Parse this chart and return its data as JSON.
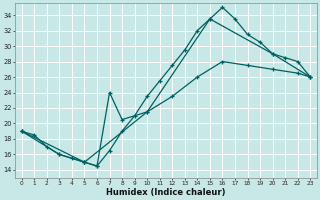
{
  "xlabel": "Humidex (Indice chaleur)",
  "bg_color": "#c8e8e8",
  "grid_color": "#b0d0d0",
  "line_color": "#006060",
  "xlim": [
    -0.5,
    23.5
  ],
  "ylim": [
    13.0,
    35.5
  ],
  "xticks": [
    0,
    1,
    2,
    3,
    4,
    5,
    6,
    7,
    8,
    9,
    10,
    11,
    12,
    13,
    14,
    15,
    16,
    17,
    18,
    19,
    20,
    21,
    22,
    23
  ],
  "yticks": [
    14,
    16,
    18,
    20,
    22,
    24,
    26,
    28,
    30,
    32,
    34
  ],
  "line1_x": [
    0,
    1,
    2,
    3,
    4,
    5,
    6,
    7,
    8,
    9,
    10,
    11,
    12,
    13,
    14,
    15,
    16,
    17,
    18,
    19,
    20,
    21,
    22,
    23
  ],
  "line1_y": [
    19.0,
    18.5,
    17.0,
    16.0,
    15.5,
    15.0,
    14.5,
    16.5,
    19.0,
    21.0,
    23.5,
    25.5,
    27.5,
    29.5,
    32.0,
    33.5,
    35.0,
    33.5,
    31.5,
    30.5,
    29.0,
    28.5,
    28.0,
    26.0
  ],
  "line2_x": [
    0,
    3,
    5,
    6,
    7,
    8,
    10,
    12,
    14,
    16,
    18,
    20,
    22,
    23
  ],
  "line2_y": [
    19.0,
    16.0,
    15.0,
    14.5,
    24.0,
    20.5,
    21.5,
    23.5,
    26.0,
    28.0,
    27.5,
    27.0,
    26.5,
    26.0
  ],
  "line3_x": [
    0,
    5,
    10,
    15,
    20,
    23
  ],
  "line3_y": [
    19.0,
    15.0,
    21.5,
    33.5,
    29.0,
    26.0
  ]
}
